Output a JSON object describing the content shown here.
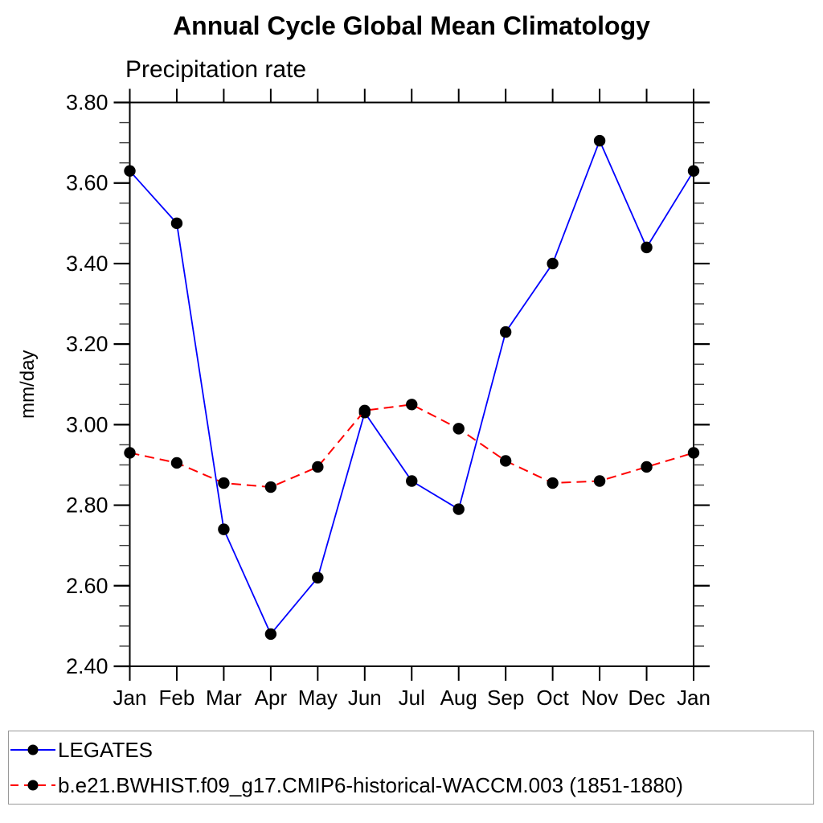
{
  "chart": {
    "title": "Annual Cycle Global Mean Climatology",
    "subtitle": "Precipitation rate"
  },
  "chart_data": {
    "type": "line",
    "title": "Annual Cycle Global Mean Climatology",
    "subtitle": "Precipitation rate",
    "xlabel": "",
    "ylabel": "mm/day",
    "categories": [
      "Jan",
      "Feb",
      "Mar",
      "Apr",
      "May",
      "Jun",
      "Jul",
      "Aug",
      "Sep",
      "Oct",
      "Nov",
      "Dec",
      "Jan"
    ],
    "ylim": [
      2.4,
      3.8
    ],
    "ytick_labels": [
      "2.40",
      "2.60",
      "2.80",
      "3.00",
      "3.20",
      "3.40",
      "3.60",
      "3.80"
    ],
    "ytick_values": [
      2.4,
      2.6,
      2.8,
      3.0,
      3.2,
      3.4,
      3.6,
      3.8
    ],
    "ytick_minor_step": 0.05,
    "grid": false,
    "legend_position": "bottom",
    "marker_color": "#000000",
    "series": [
      {
        "name": "LEGATES",
        "color": "#0000ff",
        "style": "solid",
        "marker": "circle",
        "values": [
          3.63,
          3.5,
          2.74,
          2.48,
          2.62,
          3.03,
          2.86,
          2.79,
          3.23,
          3.4,
          3.705,
          3.44,
          3.63
        ]
      },
      {
        "name": "b.e21.BWHIST.f09_g17.CMIP6-historical-WACCM.003 (1851-1880)",
        "color": "#ff0000",
        "style": "dashed",
        "marker": "circle",
        "values": [
          2.93,
          2.905,
          2.855,
          2.845,
          2.895,
          3.035,
          3.05,
          2.99,
          2.91,
          2.855,
          2.86,
          2.895,
          2.93
        ]
      }
    ]
  }
}
